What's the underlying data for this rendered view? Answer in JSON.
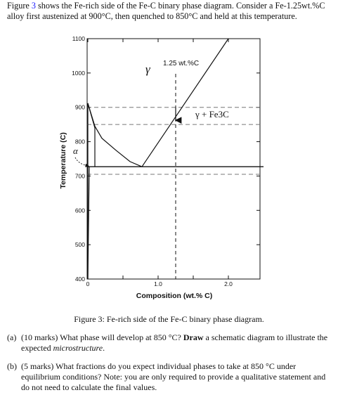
{
  "intro": {
    "p1": "Figure ",
    "ref": "3",
    "p2": " shows the Fe-rich side of the Fe-C binary phase diagram. Consider a Fe-1.25wt.%C alloy first austenized at 900°C, then quenched to 850°C and held at this temperature."
  },
  "chart_data": {
    "type": "line",
    "title": "",
    "xlabel": "Composition (wt.% C)",
    "ylabel": "Temperature (C)",
    "xlim": [
      0,
      2.5
    ],
    "ylim": [
      400,
      1100
    ],
    "x_tick_labels": [
      "0",
      "1.0",
      "2.0"
    ],
    "y_tick_labels": [
      "1100",
      "1000",
      "900",
      "800",
      "700",
      "600",
      "500",
      "400"
    ],
    "y_ticks": [
      1100,
      1000,
      900,
      800,
      700,
      600,
      500,
      400
    ],
    "phase_labels": {
      "gamma": "γ",
      "gamma_fe3c": "γ + Fe3C",
      "alpha": "α"
    },
    "annotation": "1.25 wt.%C",
    "boundaries": {
      "gamma_alpha_solvus": [
        [
          0,
          912
        ],
        [
          0.1,
          845
        ],
        [
          0.2,
          810
        ],
        [
          0.4,
          775
        ],
        [
          0.6,
          742
        ],
        [
          0.77,
          727
        ]
      ],
      "acm_line": [
        [
          0.77,
          727
        ],
        [
          2.0,
          1100
        ]
      ],
      "eutectoid": [
        [
          0,
          727
        ],
        [
          2.5,
          727
        ]
      ],
      "alpha_solvus": [
        [
          0,
          400
        ],
        [
          0.02,
          727
        ]
      ],
      "alpha_upper": [
        [
          0,
          912
        ],
        [
          0.1,
          840
        ],
        [
          0.1,
          727
        ]
      ],
      "left_axis_line": [
        [
          0,
          400
        ],
        [
          0,
          912
        ]
      ]
    },
    "reference_lines": {
      "dashed_horizontal": [
        900,
        850,
        705
      ],
      "dashed_vertical": 1.25
    },
    "arrow": {
      "x": 1.25,
      "from": 900,
      "to": 850
    }
  },
  "caption": "Figure 3:  Fe-rich side of the Fe-C binary phase diagram.",
  "questions": [
    {
      "label": "(a)",
      "text_1": "(10 marks)  What phase will develop at 850 °C? ",
      "bold": "Draw",
      "text_2": " a schematic diagram to illustrate the expected ",
      "italic": "microstructure",
      "text_3": "."
    },
    {
      "label": "(b)",
      "text": "(5 marks)  What fractions do you expect individual phases to take at 850 °C under equilibrium conditions? Note: you are only required to provide a qualitative statement and do not need to calculate the final values."
    }
  ]
}
